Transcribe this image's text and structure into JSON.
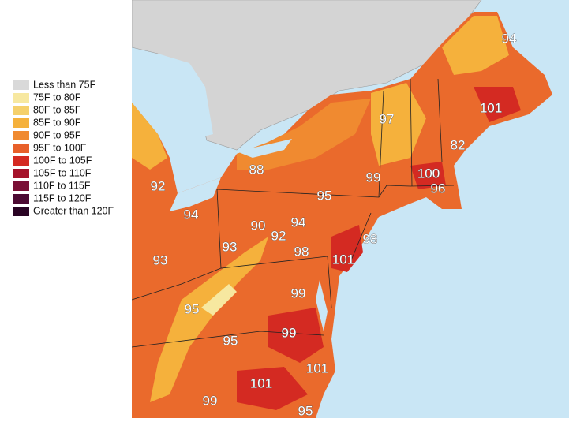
{
  "legend": [
    {
      "label": "Less than 75F",
      "color": "#d9d9d9"
    },
    {
      "label": "75F to 80F",
      "color": "#f7e8a0"
    },
    {
      "label": "80F to 85F",
      "color": "#f5d06b"
    },
    {
      "label": "85F to 90F",
      "color": "#f5b13c"
    },
    {
      "label": "90F to 95F",
      "color": "#f08a30"
    },
    {
      "label": "95F to 100F",
      "color": "#e8602a"
    },
    {
      "label": "100F to 105F",
      "color": "#d42a22"
    },
    {
      "label": "105F to 110F",
      "color": "#a5122a"
    },
    {
      "label": "110F to 115F",
      "color": "#7a0f35"
    },
    {
      "label": "115F to 120F",
      "color": "#4d0a33"
    },
    {
      "label": "Greater than 120F",
      "color": "#2a0424"
    }
  ],
  "map_labels": [
    94,
    101,
    97,
    82,
    88,
    99,
    100,
    96,
    92,
    95,
    94,
    94,
    90,
    92,
    98,
    93,
    98,
    101,
    93,
    99,
    95,
    99,
    95,
    101,
    101,
    99,
    95
  ]
}
